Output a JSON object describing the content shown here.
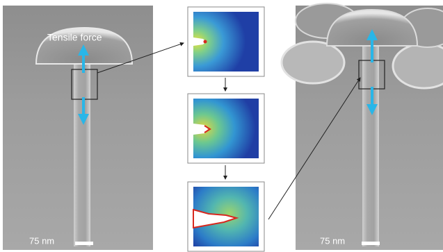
{
  "left_panel": {
    "label": "Tensile force",
    "scale_bar": "75 nm"
  },
  "right_panel": {
    "scale_bar": "75 nm"
  }
}
